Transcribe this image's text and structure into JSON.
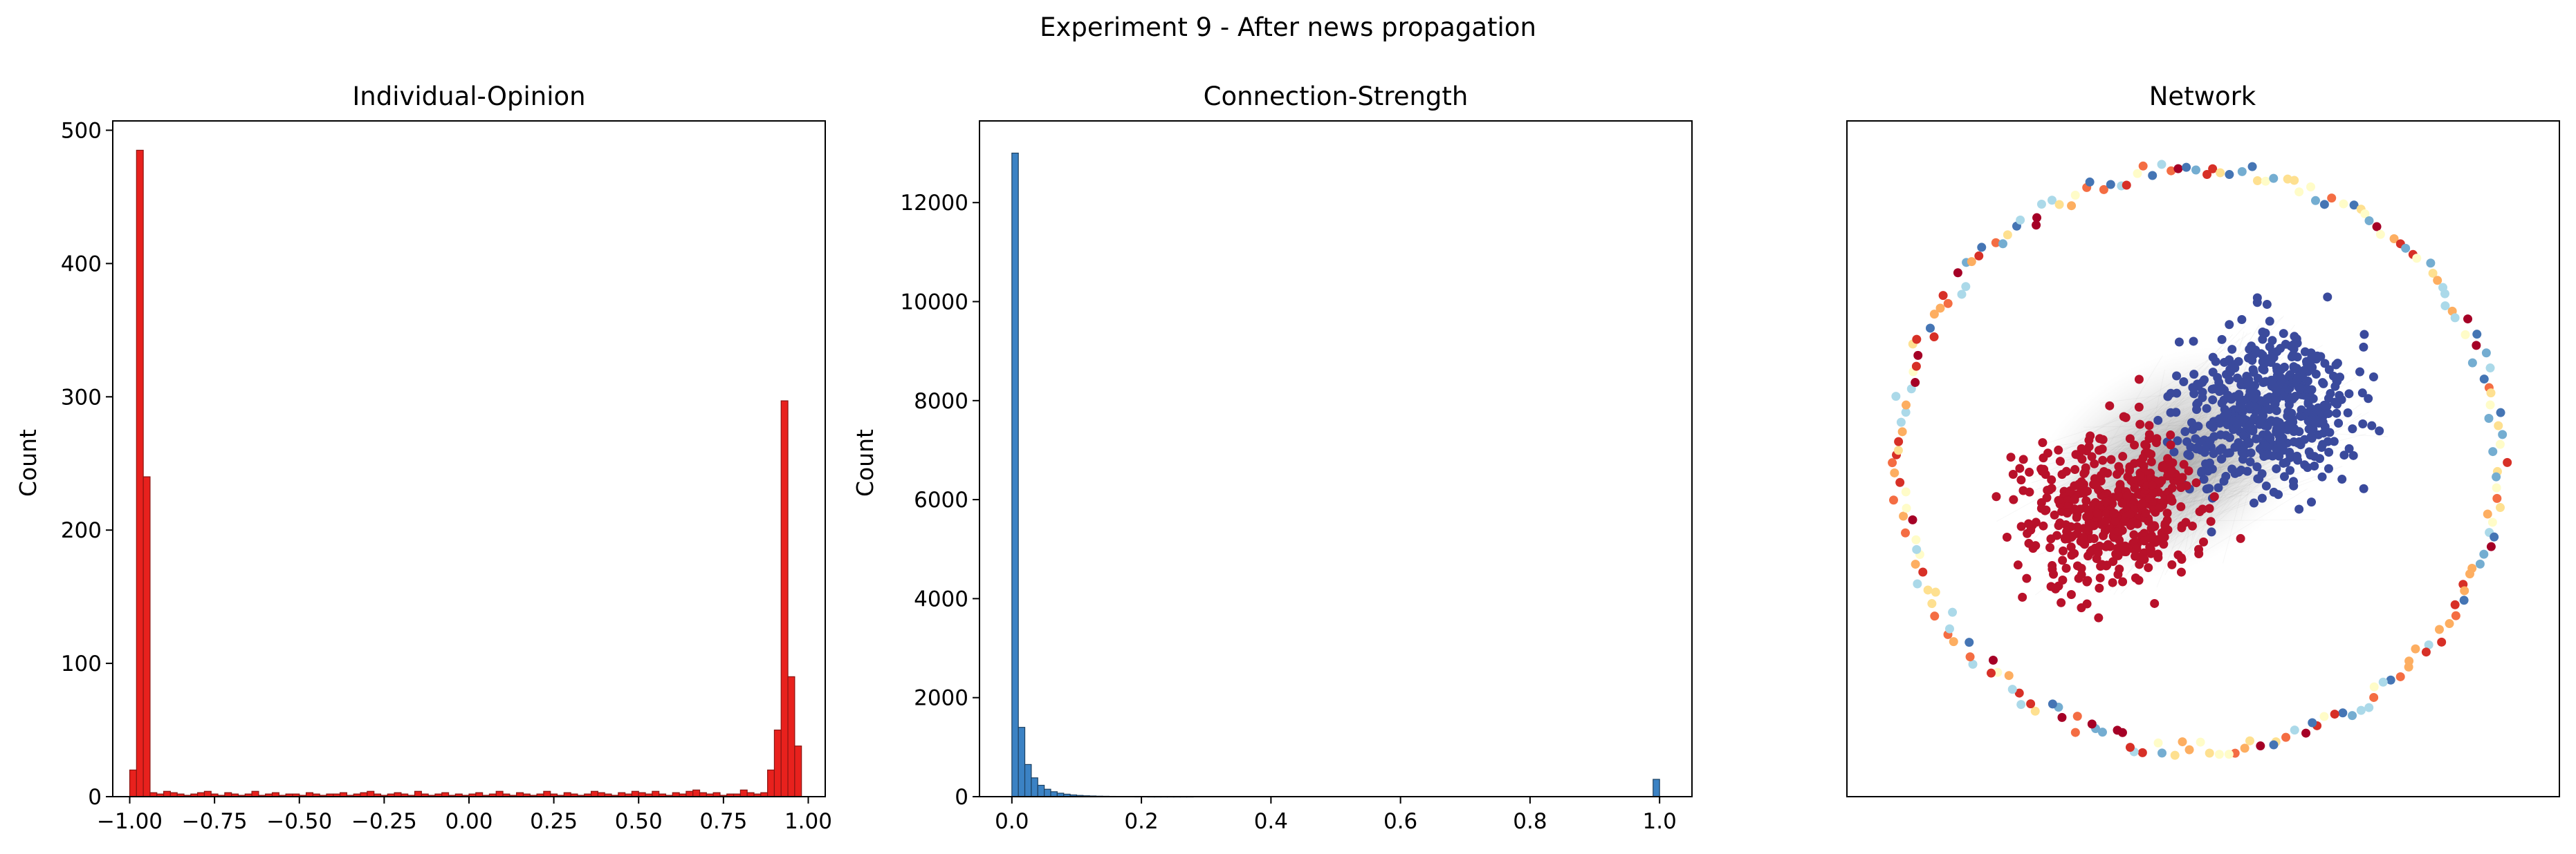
{
  "suptitle": "Experiment 9 - After news propagation",
  "chart_data": [
    {
      "type": "bar",
      "subtype": "histogram",
      "title": "Individual-Opinion",
      "xlabel": "",
      "ylabel": "Count",
      "xlim": [
        -1.05,
        1.05
      ],
      "ylim": [
        0,
        507
      ],
      "xticks": [
        -1.0,
        -0.75,
        -0.5,
        -0.25,
        0.0,
        0.25,
        0.5,
        0.75,
        1.0
      ],
      "xtick_labels": [
        "−1.00",
        "−0.75",
        "−0.50",
        "−0.25",
        "0.00",
        "0.25",
        "0.50",
        "0.75",
        "1.00"
      ],
      "yticks": [
        0,
        100,
        200,
        300,
        400,
        500
      ],
      "ytick_labels": [
        "0",
        "100",
        "200",
        "300",
        "400",
        "500"
      ],
      "bin_start": -1.0,
      "bin_width": 0.02,
      "values": [
        20,
        485,
        240,
        3,
        2,
        4,
        3,
        2,
        1,
        2,
        3,
        4,
        2,
        1,
        3,
        2,
        1,
        2,
        4,
        1,
        2,
        3,
        1,
        2,
        2,
        1,
        3,
        2,
        1,
        2,
        2,
        3,
        1,
        2,
        3,
        4,
        2,
        1,
        2,
        3,
        2,
        1,
        4,
        2,
        1,
        2,
        3,
        1,
        2,
        1,
        2,
        3,
        1,
        2,
        4,
        2,
        1,
        3,
        2,
        1,
        2,
        4,
        2,
        1,
        3,
        2,
        1,
        2,
        4,
        3,
        2,
        1,
        3,
        2,
        4,
        3,
        2,
        4,
        2,
        1,
        3,
        2,
        4,
        5,
        3,
        2,
        3,
        1,
        2,
        2,
        5,
        3,
        2,
        3,
        20,
        50,
        297,
        90,
        38
      ],
      "color": "#e8211d",
      "edge_color": "#8a1512"
    },
    {
      "type": "bar",
      "subtype": "histogram",
      "title": "Connection-Strength",
      "xlabel": "",
      "ylabel": "Count",
      "xlim": [
        -0.05,
        1.05
      ],
      "ylim": [
        0,
        13650
      ],
      "xticks": [
        0.0,
        0.2,
        0.4,
        0.6,
        0.8,
        1.0
      ],
      "xtick_labels": [
        "0.0",
        "0.2",
        "0.4",
        "0.6",
        "0.8",
        "1.0"
      ],
      "yticks": [
        0,
        2000,
        4000,
        6000,
        8000,
        10000,
        12000
      ],
      "ytick_labels": [
        "0",
        "2000",
        "4000",
        "6000",
        "8000",
        "10000",
        "12000"
      ],
      "bin_start": 0.0,
      "bin_width": 0.01,
      "values": [
        13000,
        1400,
        650,
        380,
        230,
        150,
        100,
        70,
        50,
        35,
        25,
        18,
        14,
        10,
        8,
        6,
        5,
        4,
        3,
        2,
        2,
        1,
        1,
        1,
        1,
        1,
        1,
        1,
        0,
        0,
        0,
        0,
        0,
        0,
        0,
        0,
        0,
        0,
        0,
        0,
        0,
        0,
        0,
        0,
        0,
        0,
        0,
        0,
        0,
        0,
        0,
        0,
        0,
        0,
        0,
        0,
        0,
        0,
        0,
        0,
        0,
        0,
        0,
        0,
        0,
        0,
        0,
        0,
        0,
        0,
        0,
        0,
        0,
        0,
        0,
        0,
        0,
        0,
        0,
        0,
        0,
        0,
        0,
        0,
        0,
        0,
        0,
        0,
        0,
        0,
        0,
        0,
        0,
        0,
        0,
        0,
        0,
        0,
        0,
        350
      ],
      "color": "#3b82c4",
      "edge_color": "#1d4060"
    },
    {
      "type": "scatter",
      "subtype": "network",
      "title": "Network",
      "axes_ticks": false,
      "groups": [
        {
          "label": "",
          "color": "#3a4a9c",
          "cluster": "blue",
          "count": 520
        },
        {
          "label": "",
          "color": "#b8112a",
          "cluster": "red",
          "count": 480
        },
        {
          "label": "",
          "color": "#d73027",
          "cluster": "ring",
          "count": 26
        },
        {
          "label": "",
          "color": "#f46d43",
          "cluster": "ring",
          "count": 22
        },
        {
          "label": "",
          "color": "#fdae61",
          "cluster": "ring",
          "count": 26
        },
        {
          "label": "",
          "color": "#fee090",
          "cluster": "ring",
          "count": 22
        },
        {
          "label": "",
          "color": "#fffcc8",
          "cluster": "ring",
          "count": 26
        },
        {
          "label": "",
          "color": "#abd9e9",
          "cluster": "ring",
          "count": 30
        },
        {
          "label": "",
          "color": "#74add1",
          "cluster": "ring",
          "count": 22
        },
        {
          "label": "",
          "color": "#4575b4",
          "cluster": "ring",
          "count": 22
        },
        {
          "label": "",
          "color": "#a50026",
          "cluster": "ring",
          "count": 18
        }
      ],
      "edge_color": "#9a9a9a"
    }
  ]
}
